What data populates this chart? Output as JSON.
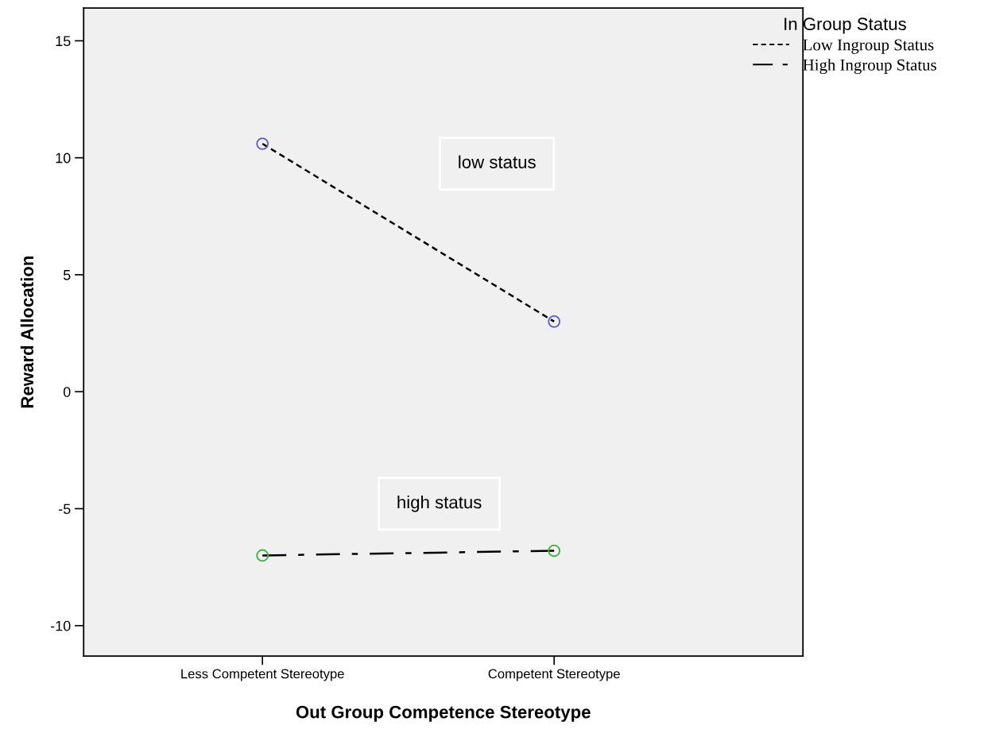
{
  "chart_data": {
    "type": "line",
    "xlabel": "Out Group Competence Stereotype",
    "ylabel": "Reward Allocation",
    "legend_title": "In Group Status",
    "categories": [
      "Less Competent Stereotype",
      "Competent Stereotype"
    ],
    "series": [
      {
        "name": "Low Ingroup Status",
        "color": "#000000",
        "colors": [
          "#5a5ad2",
          "#5a5ad2"
        ],
        "line_style": "dotted",
        "values": [
          10.6,
          3.0
        ]
      },
      {
        "name": "High Ingroup Status",
        "color": "#000000",
        "colors": [
          "#3cb43c",
          "#3cb43c"
        ],
        "line_style": "dashed",
        "values": [
          -7.0,
          -6.8
        ]
      }
    ],
    "ylim": [
      -11.3,
      16.4
    ],
    "yticks": [
      -10,
      -5,
      0,
      5,
      10,
      15
    ],
    "annotations": [
      "low status",
      "high status"
    ],
    "marker": "circle",
    "grid": false,
    "legend": "top right"
  }
}
